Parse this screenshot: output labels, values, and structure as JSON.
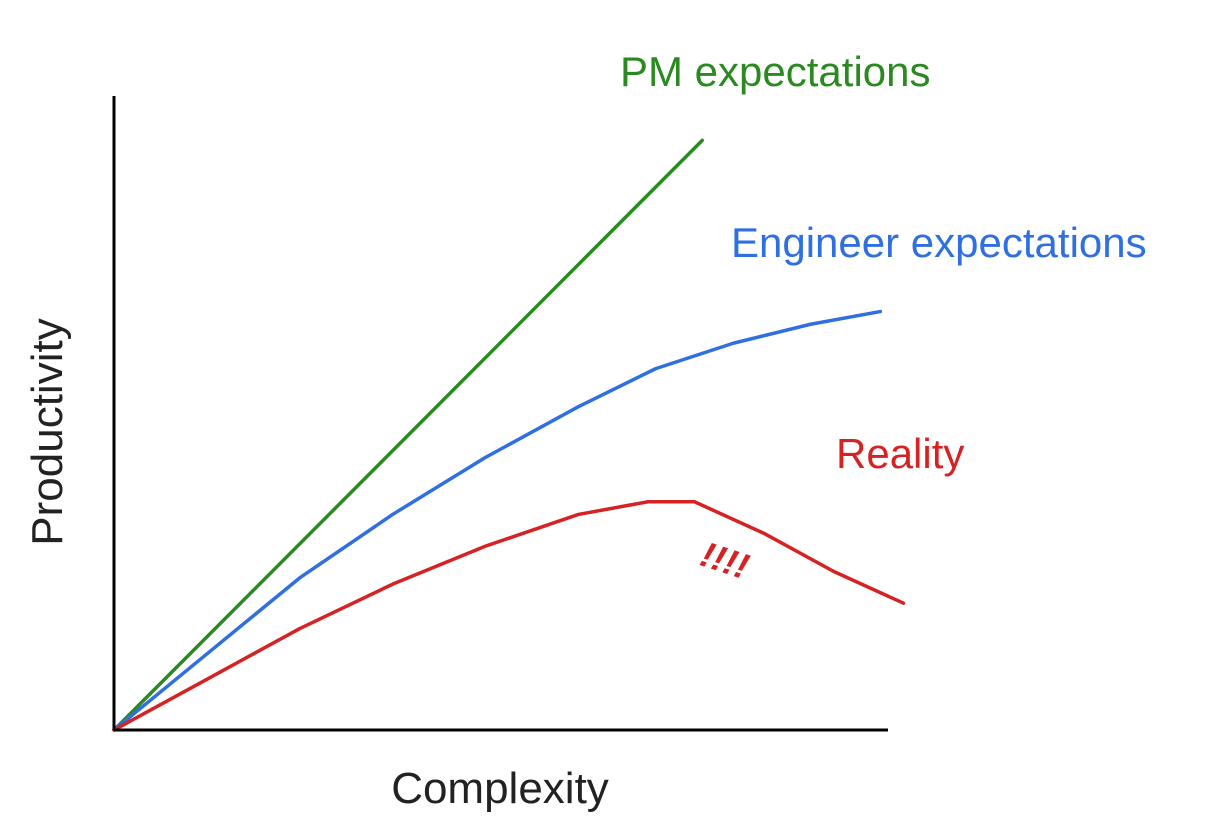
{
  "chart_data": {
    "type": "line",
    "title": "",
    "xlabel": "Complexity",
    "ylabel": "Productivity",
    "xlim": [
      0,
      10
    ],
    "ylim": [
      0,
      10
    ],
    "grid": false,
    "ticks": false,
    "series": [
      {
        "name": "PM expectations",
        "color": "#2a8a1f",
        "x": [
          0,
          7.6
        ],
        "y": [
          0,
          9.3
        ]
      },
      {
        "name": "Engineer expectations",
        "color": "#2f6fe0",
        "x": [
          0,
          1.2,
          2.4,
          3.6,
          4.8,
          6.0,
          7.0,
          8.0,
          9.0,
          9.9
        ],
        "y": [
          0,
          1.2,
          2.4,
          3.4,
          4.3,
          5.1,
          5.7,
          6.1,
          6.4,
          6.6
        ]
      },
      {
        "name": "Reality",
        "color": "#d62222",
        "x": [
          0,
          1.2,
          2.4,
          3.6,
          4.8,
          6.0,
          6.9,
          7.5,
          8.4,
          9.3,
          10.2
        ],
        "y": [
          0,
          0.8,
          1.6,
          2.3,
          2.9,
          3.4,
          3.6,
          3.6,
          3.1,
          2.5,
          2.0
        ]
      }
    ],
    "annotations": [
      {
        "text": "!!!!",
        "color": "#d62222"
      }
    ]
  }
}
